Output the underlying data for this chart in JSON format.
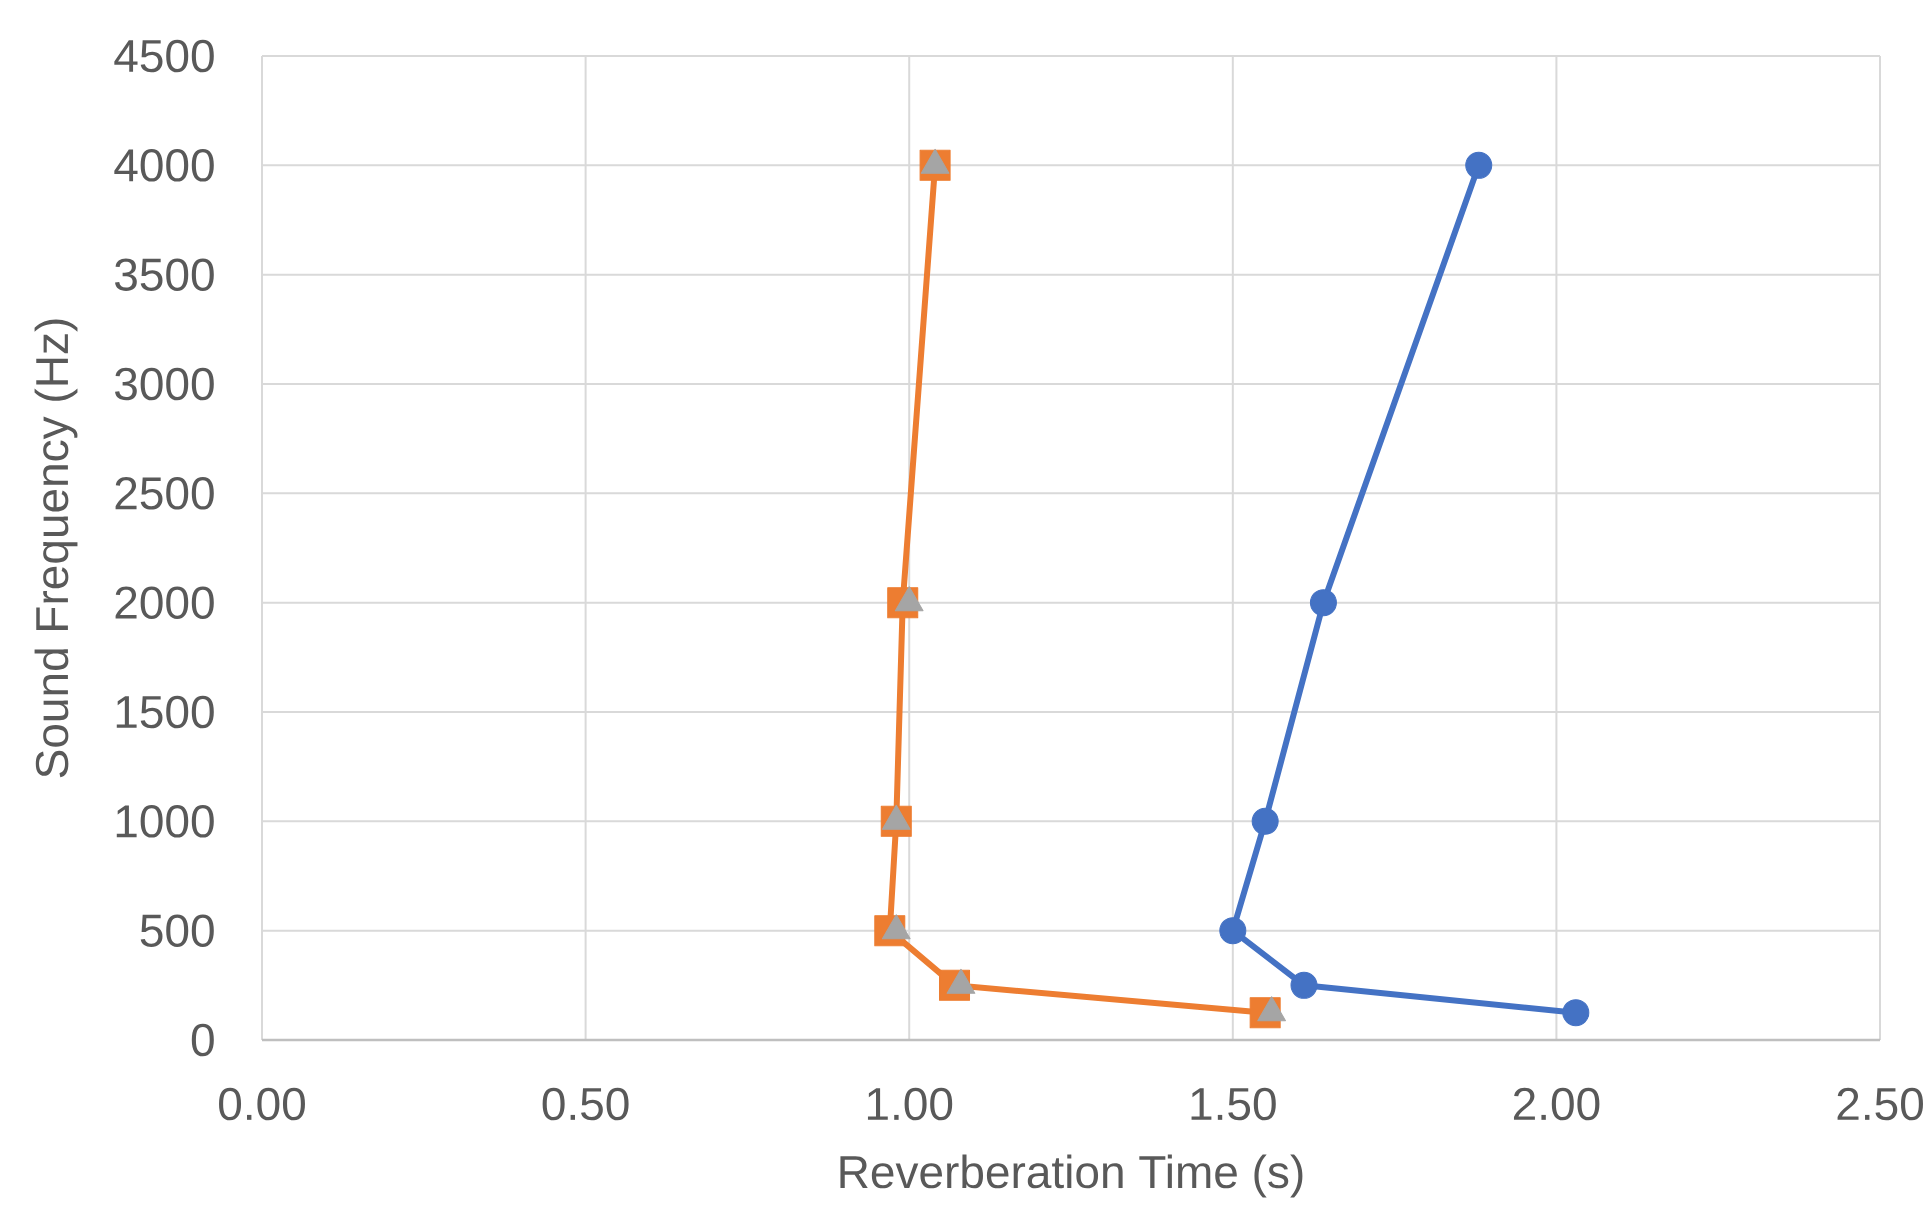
{
  "chart_data": {
    "type": "line",
    "xlabel": "Reverberation Time (s)",
    "ylabel": "Sound Frequency (Hz)",
    "xlim": [
      0,
      2.5
    ],
    "ylim": [
      0,
      4500
    ],
    "xticks": [
      {
        "value": 0,
        "label": "0.00"
      },
      {
        "value": 0.5,
        "label": "0.50"
      },
      {
        "value": 1,
        "label": "1.00"
      },
      {
        "value": 1.5,
        "label": "1.50"
      },
      {
        "value": 2,
        "label": "2.00"
      },
      {
        "value": 2.5,
        "label": "2.50"
      }
    ],
    "yticks": [
      0,
      500,
      1000,
      1500,
      2000,
      2500,
      3000,
      3500,
      4000,
      4500
    ],
    "grid": true,
    "series": [
      {
        "color": "#4472c4",
        "marker": "circle",
        "x": [
          2.03,
          1.61,
          1.5,
          1.55,
          1.64,
          1.88
        ],
        "values": [
          125,
          250,
          500,
          1000,
          2000,
          4000
        ]
      },
      {
        "color": "#ed7d31",
        "marker": "square",
        "x": [
          1.55,
          1.07,
          0.97,
          0.98,
          0.99,
          1.04
        ],
        "values": [
          125,
          250,
          500,
          1000,
          2000,
          4000
        ]
      },
      {
        "type": "scatter",
        "color": "#a5a5a5",
        "marker": "triangle",
        "x": [
          1.56,
          1.08,
          0.98,
          0.98,
          1.0,
          1.04
        ],
        "values": [
          125,
          250,
          500,
          1000,
          2000,
          4000
        ]
      }
    ]
  }
}
